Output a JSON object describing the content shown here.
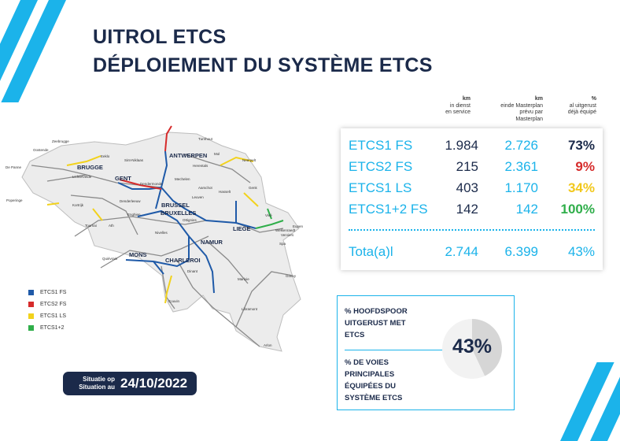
{
  "title": {
    "line1": "UITROL ETCS",
    "line2": "DÉPLOIEMENT DU SYSTÈME ETCS"
  },
  "map": {
    "cities": [
      "ANTWERPEN",
      "BRUGGE",
      "GENT",
      "BRUSSEL",
      "BRUXELLES",
      "LIEGE",
      "NAMUR",
      "CHARLEROI",
      "MONS"
    ],
    "towns": [
      "Zeebrugge",
      "Oostende",
      "De Panne",
      "Eeklo",
      "Sint-Niklaas",
      "Turnhout",
      "Mol",
      "Neerpelt",
      "Herentals",
      "Lichtervelde",
      "Mechelen",
      "Dendermonde",
      "Aarschot",
      "Hasselt",
      "Genk",
      "Leuven",
      "Poperinge",
      "Kortrijk",
      "Denderleeuw",
      "Enghien",
      "Ottignies",
      "Visé",
      "Eupen",
      "Welkenraedt",
      "Verviers",
      "Spa",
      "Tournai",
      "Ath",
      "Nivelles",
      "Quiévrain",
      "Marloie",
      "Dinant",
      "Gouvy",
      "Libramont",
      "Couvin",
      "Arlon"
    ]
  },
  "legend": [
    {
      "label": "ETCS1 FS",
      "color": "#1f5aa8"
    },
    {
      "label": "ETCS2 FS",
      "color": "#d62b2b"
    },
    {
      "label": "ETCS1 LS",
      "color": "#f2d21c"
    },
    {
      "label": "ETCS1+2",
      "color": "#2fae4a"
    }
  ],
  "situation": {
    "nl": "Situatie op",
    "fr": "Situation au",
    "date": "24/10/2022"
  },
  "columns": {
    "c1": {
      "unit": "km",
      "l1": "in dienst",
      "l2": "en service"
    },
    "c2": {
      "unit": "km",
      "l1": "einde Masterplan",
      "l2": "prévu par",
      "l3": "Masterplan"
    },
    "c3": {
      "unit": "%",
      "l1": "al uitgerust",
      "l2": "déjà équipé"
    }
  },
  "rows": [
    {
      "name": "ETCS1 FS",
      "in_service": "1.984",
      "masterplan": "2.726",
      "pct": "73%",
      "pct_color": "#1b2a4a"
    },
    {
      "name": "ETCS2 FS",
      "in_service": "215",
      "masterplan": "2.361",
      "pct": "9%",
      "pct_color": "#d62b2b"
    },
    {
      "name": "ETCS1 LS",
      "in_service": "403",
      "masterplan": "1.170",
      "pct": "34%",
      "pct_color": "#f2c81c"
    },
    {
      "name": "ETCS1+2 FS",
      "in_service": "142",
      "masterplan": "142",
      "pct": "100%",
      "pct_color": "#2fae4a"
    }
  ],
  "total": {
    "name": "Tota(a)l",
    "in_service": "2.744",
    "masterplan": "6.399",
    "pct": "43%"
  },
  "hoofdspoor": {
    "nl": [
      "% HOOFDSPOOR",
      "UITGERUST MET",
      "ETCS"
    ],
    "fr": [
      "% DE VOIES",
      "PRINCIPALES",
      "ÉQUIPÉES DU",
      "SYSTÈME ETCS"
    ],
    "value": "43%",
    "fraction": 0.43
  },
  "colors": {
    "accent": "#1bb3ea",
    "navy": "#1b2a4a"
  }
}
